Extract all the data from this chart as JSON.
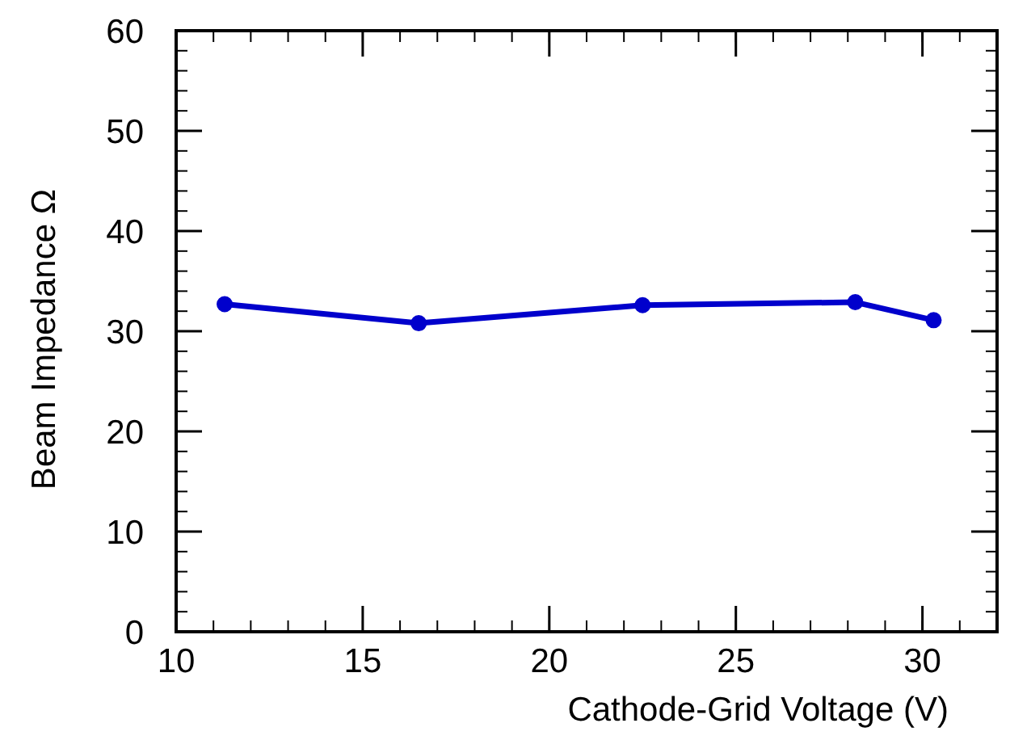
{
  "chart_data": {
    "type": "line",
    "xlabel": "Cathode-Grid Voltage (V)",
    "ylabel": "Beam Impedance   Ω",
    "x": [
      11.3,
      16.5,
      22.5,
      28.2,
      30.3
    ],
    "series": [
      {
        "color": "#0000cc",
        "values": [
          32.7,
          30.8,
          32.6,
          32.9,
          31.1
        ]
      }
    ],
    "xlim": [
      10,
      32
    ],
    "xticks": [
      10,
      15,
      20,
      25,
      30
    ],
    "ylim": [
      0,
      60
    ],
    "yticks": [
      0,
      10,
      20,
      30,
      40,
      50,
      60
    ],
    "grid": false,
    "marker": "circle",
    "line_style": "solid"
  }
}
